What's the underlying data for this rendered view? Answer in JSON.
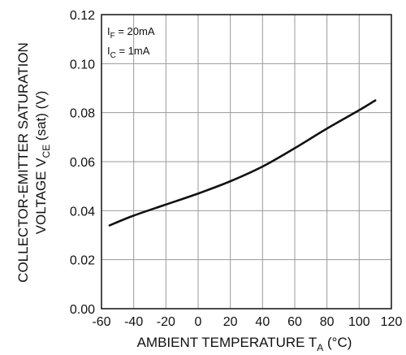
{
  "chart_data": {
    "type": "line",
    "xlabel": {
      "main": "AMBIENT TEMPERATURE T",
      "sub": "A",
      "unit": " (°C)"
    },
    "ylabel": {
      "line1": "COLLECTOR-EMITTER SATURATION",
      "line2_main": "VOLTAGE V",
      "line2_sub": "CE",
      "line2_tail": " (sat) (V)"
    },
    "xlim": [
      -60,
      120
    ],
    "ylim": [
      0,
      0.12
    ],
    "x_ticks": [
      "-60",
      "-40",
      "-20",
      "0",
      "20",
      "40",
      "60",
      "80",
      "100",
      "120"
    ],
    "y_ticks": [
      "0.00",
      "0.02",
      "0.04",
      "0.06",
      "0.08",
      "0.10",
      "0.12"
    ],
    "grid": true,
    "annotations": [
      {
        "main": "I",
        "sub": "F",
        "rest": " = 20mA"
      },
      {
        "main": "I",
        "sub": "C",
        "rest": " = 1mA"
      }
    ],
    "series": [
      {
        "x": [
          -55,
          -40,
          -20,
          0,
          20,
          40,
          60,
          80,
          100,
          110
        ],
        "y": [
          0.034,
          0.038,
          0.0425,
          0.047,
          0.052,
          0.058,
          0.0655,
          0.0735,
          0.081,
          0.085
        ]
      }
    ]
  }
}
